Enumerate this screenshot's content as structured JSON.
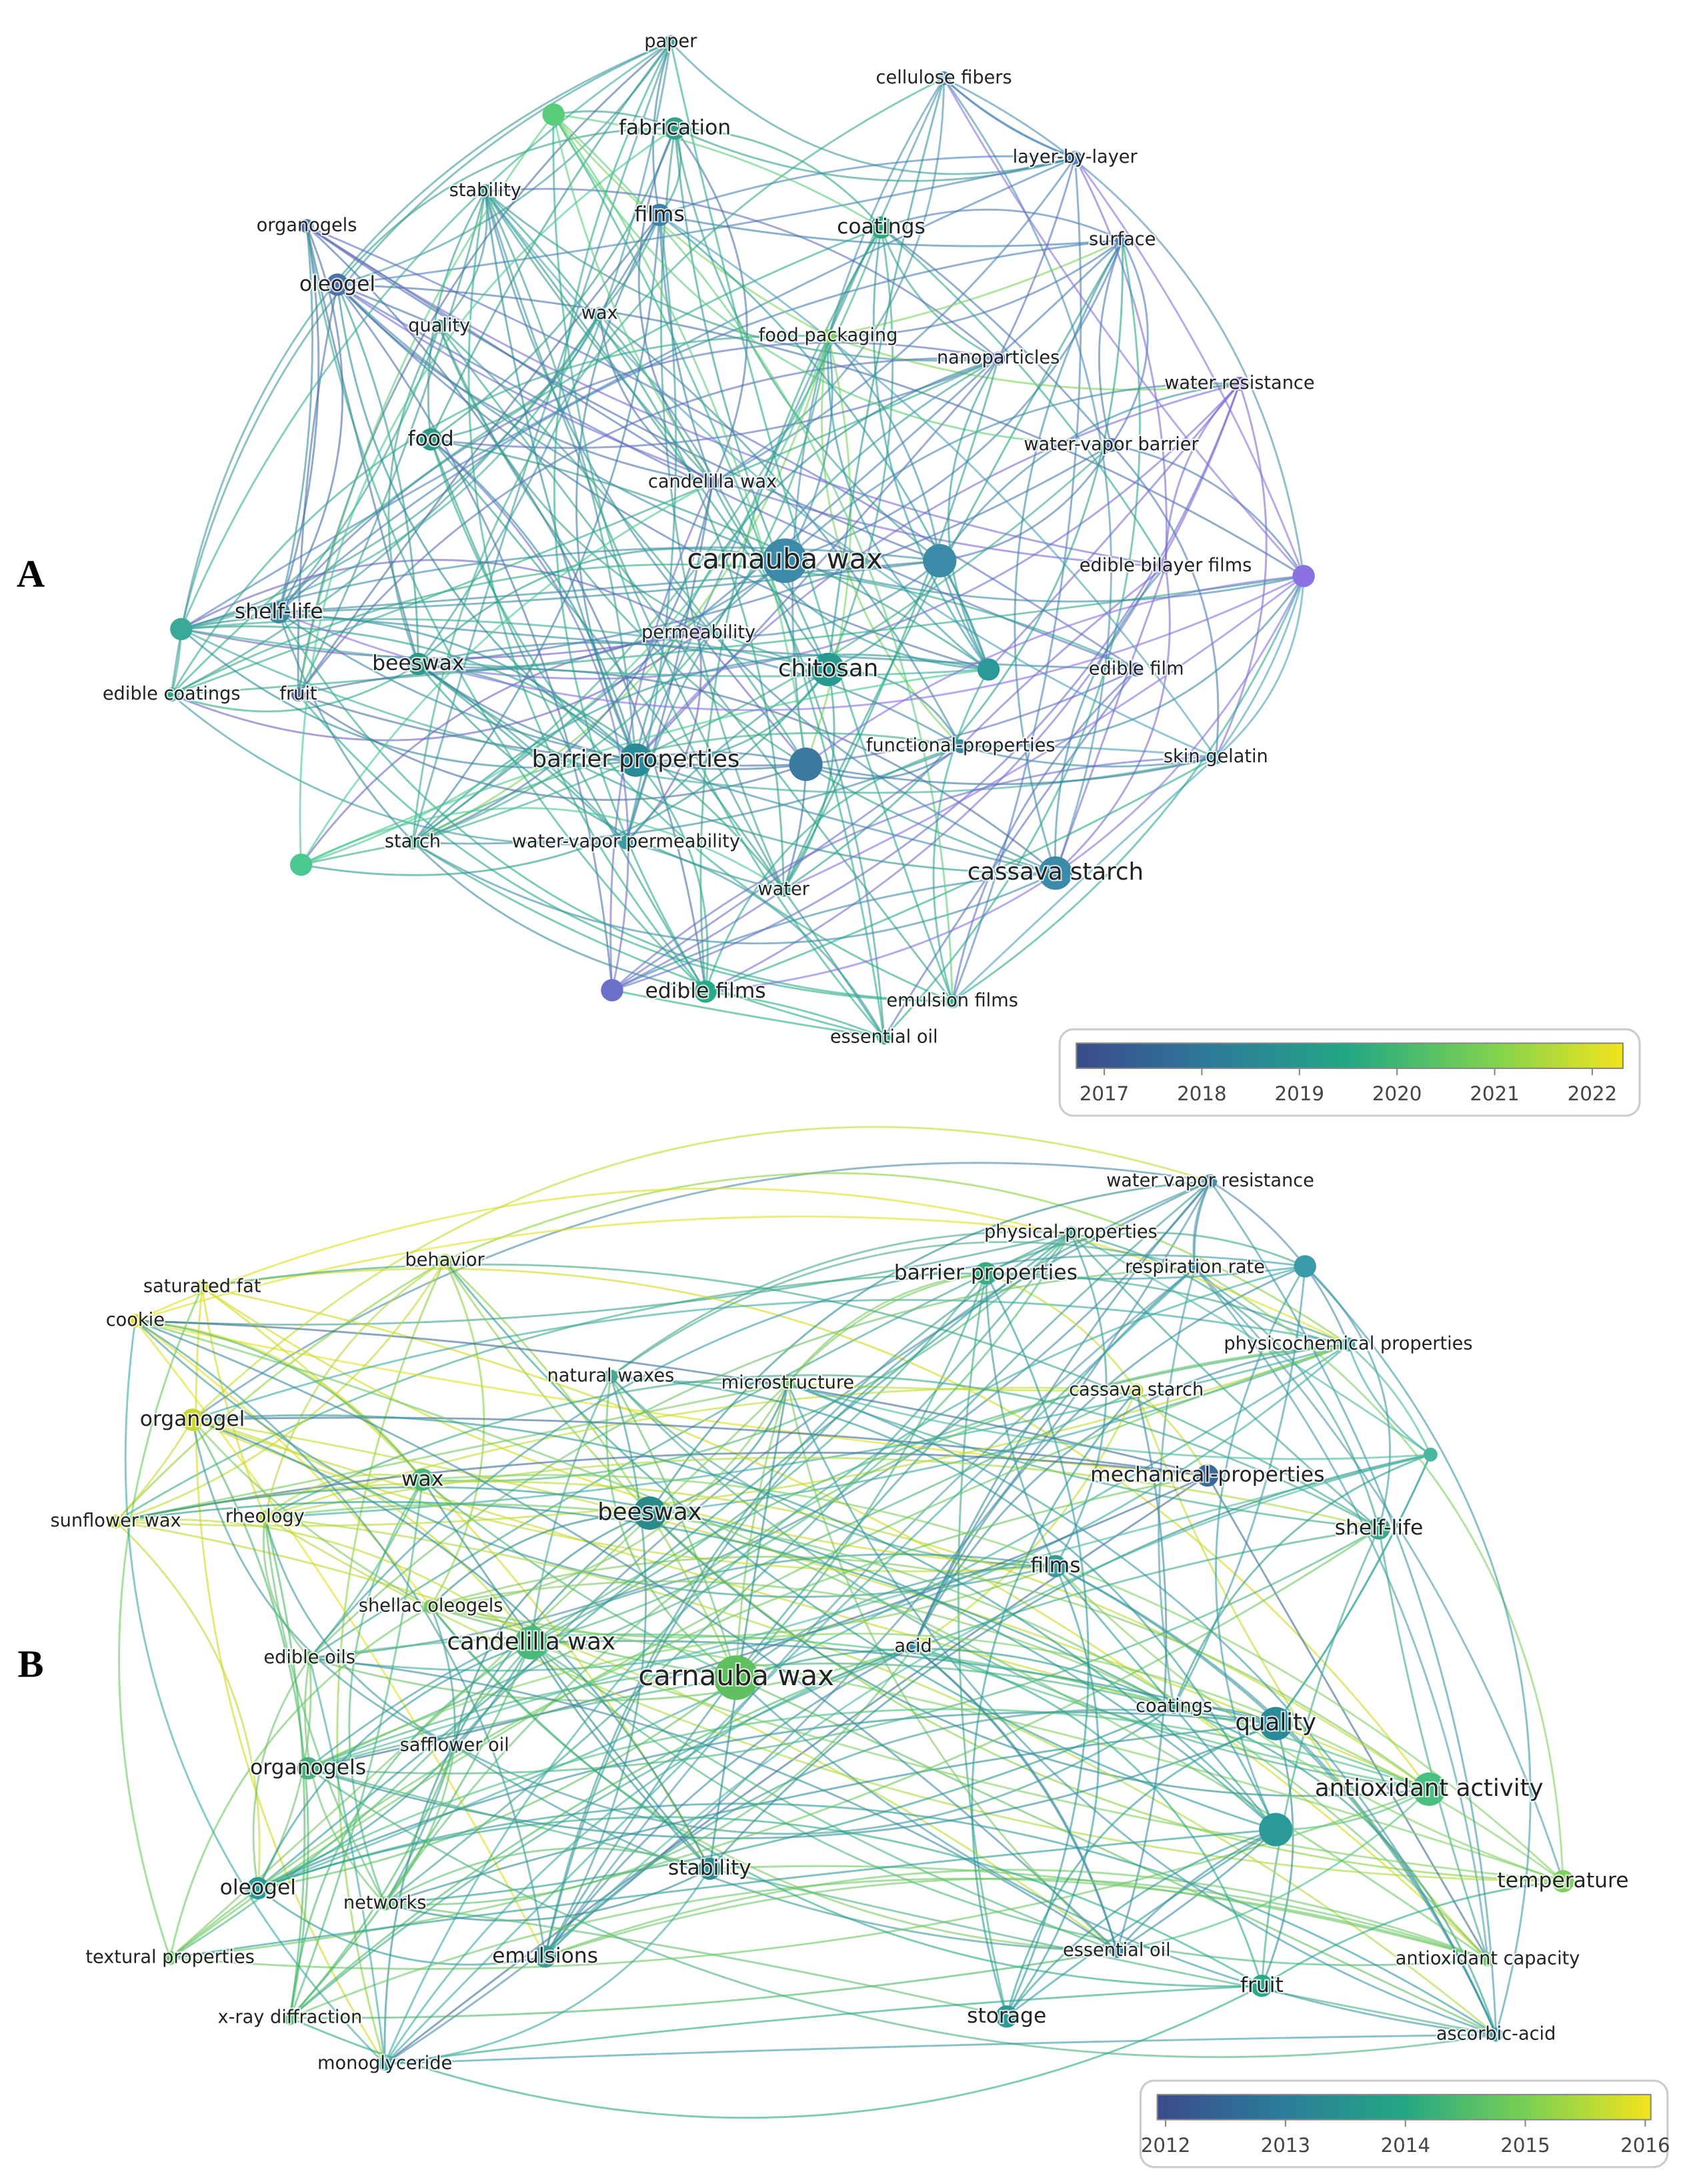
{
  "panels": [
    {
      "letter": "A",
      "nodes": [
        "paper",
        "cellulose fibers",
        "fabrication",
        "layer-by-layer",
        "stability",
        "organogels",
        "films",
        "coatings",
        "surface",
        "oleogel",
        "quality",
        "wax",
        "food packaging",
        "nanoparticles",
        "water resistance",
        "food",
        "water-vapor barrier",
        "candelilla wax",
        "carnauba wax",
        "edible bilayer films",
        "shelf-life",
        "permeability",
        "chitosan",
        "edible film",
        "edible coatings",
        "fruit",
        "beeswax",
        "barrier properties",
        "functional-properties",
        "skin gelatin",
        "starch",
        "water-vapor permeability",
        "water",
        "cassava starch",
        "edible films",
        "emulsion films",
        "essential oil"
      ],
      "legend_ticks": [
        2017,
        2018,
        2019,
        2020,
        2021,
        2022
      ]
    },
    {
      "letter": "B",
      "nodes": [
        "water vapor resistance",
        "physical-properties",
        "barrier properties",
        "respiration rate",
        "behavior",
        "saturated fat",
        "cookie",
        "physicochemical properties",
        "natural waxes",
        "microstructure",
        "cassava starch",
        "organogel",
        "mechanical-properties",
        "wax",
        "beeswax",
        "shelf-life",
        "sunflower wax",
        "rheology",
        "films",
        "shellac oleogels",
        "candelilla wax",
        "edible oils",
        "carnauba wax",
        "acid",
        "coatings",
        "quality",
        "safflower oil",
        "organogels",
        "antioxidant activity",
        "stability",
        "temperature",
        "oleogel",
        "networks",
        "textural properties",
        "emulsions",
        "essential oil",
        "antioxidant capacity",
        "fruit",
        "x-ray diffraction",
        "storage",
        "ascorbic-acid",
        "monoglyceride"
      ],
      "legend_ticks": [
        2012,
        2013,
        2014,
        2015,
        2016
      ]
    }
  ]
}
